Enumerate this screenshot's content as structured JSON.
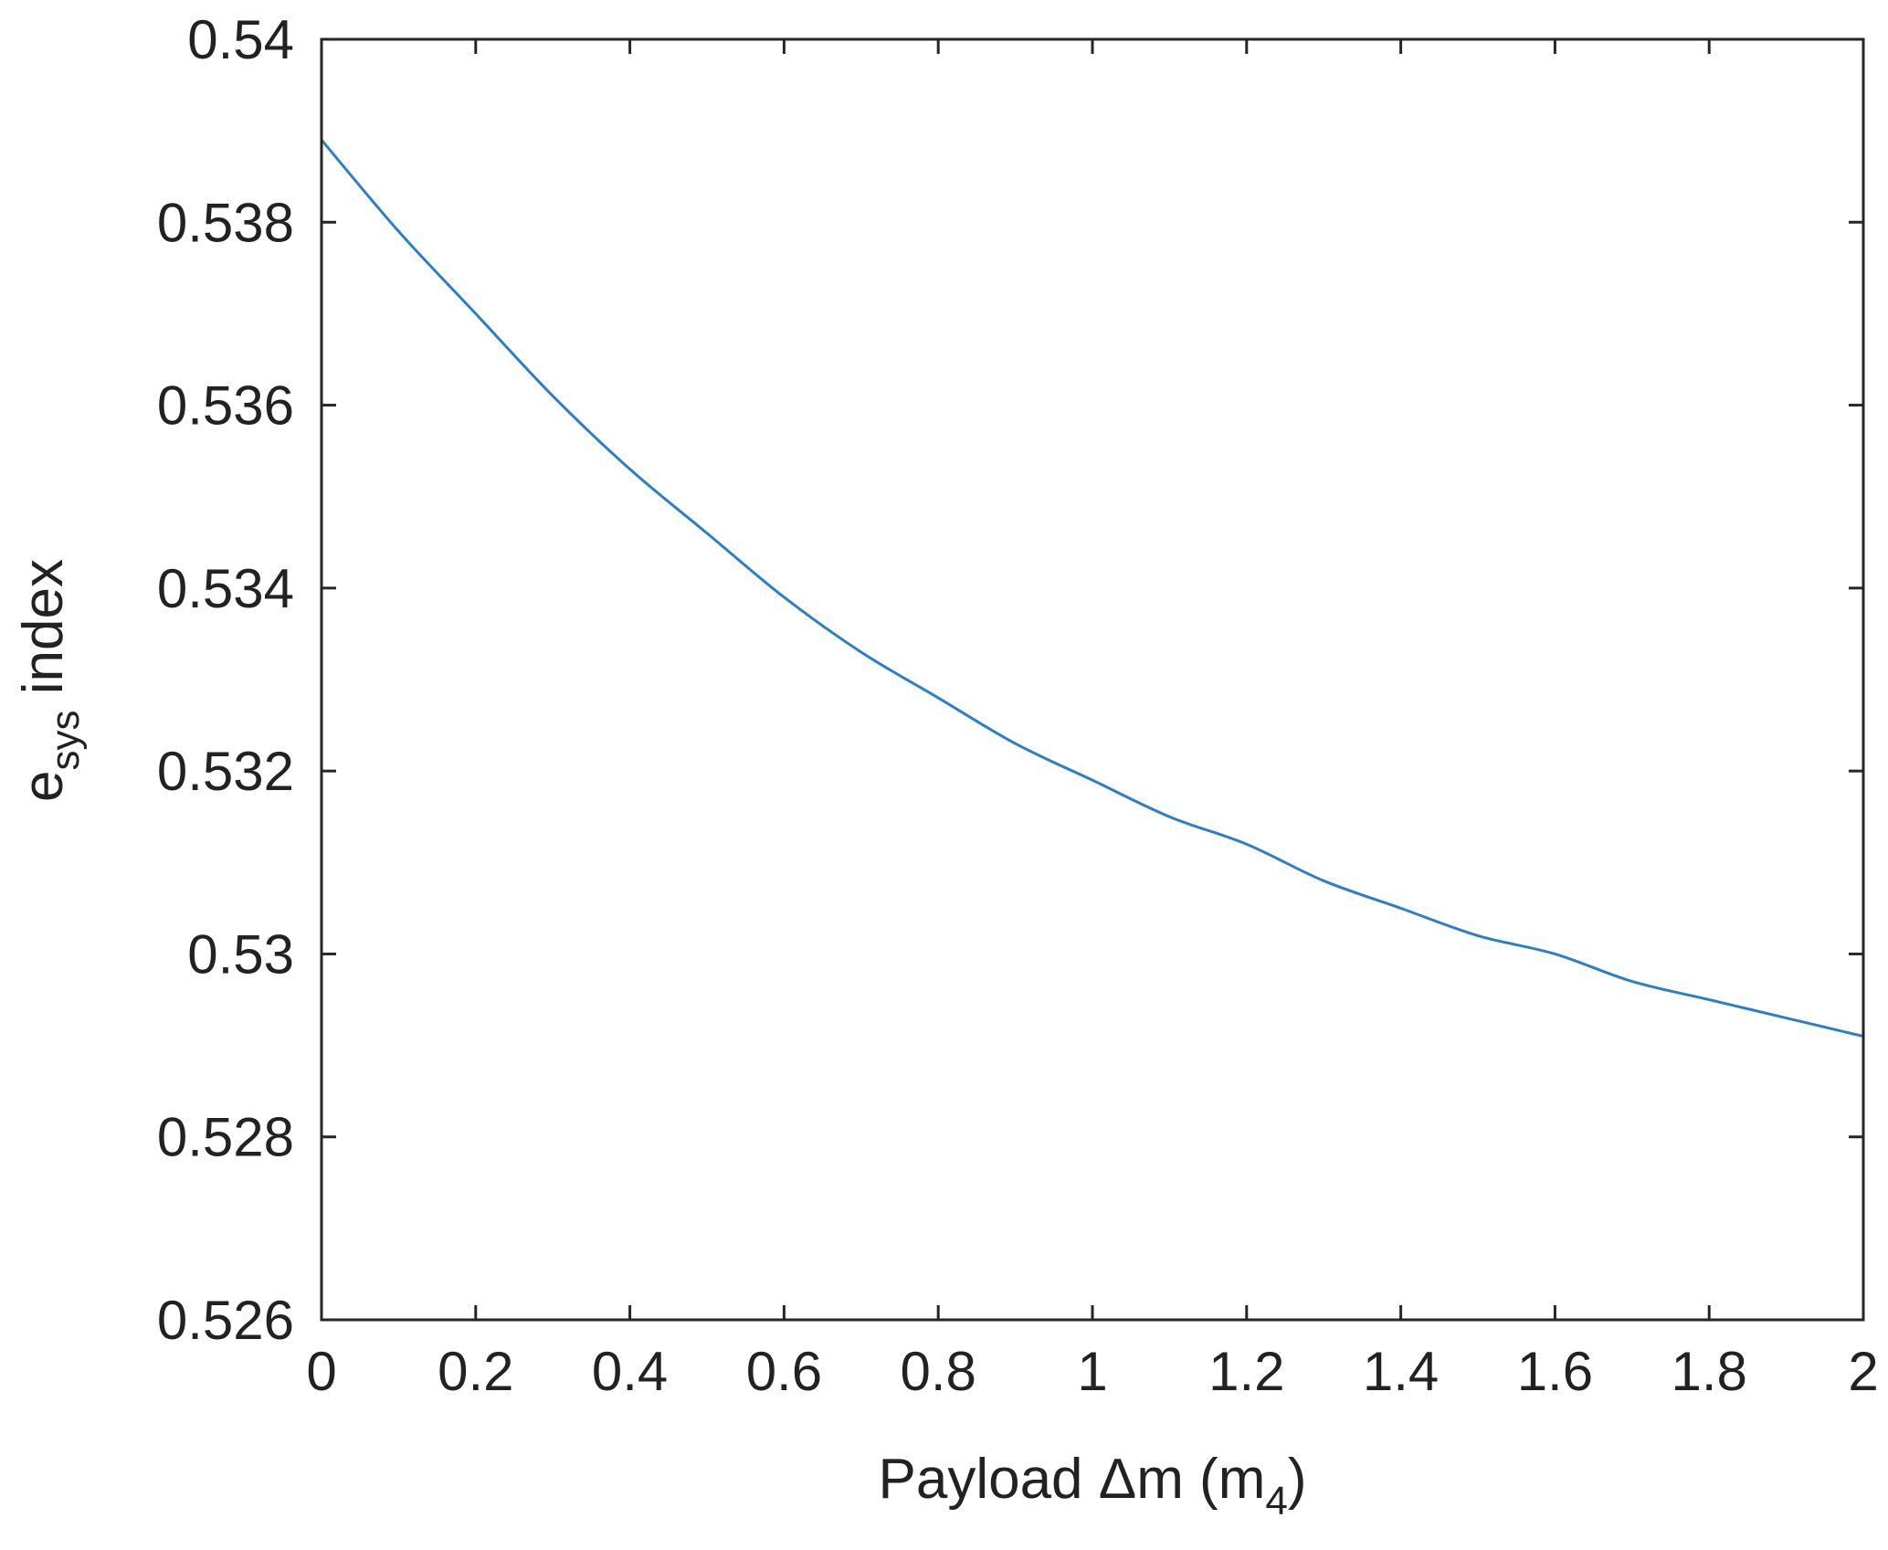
{
  "chart_data": {
    "type": "line",
    "title": "",
    "xlabel": {
      "prefix": "Payload ",
      "symbol": "Δ",
      "middle": "m (m",
      "subscript": "4",
      "suffix": ")"
    },
    "ylabel": {
      "prefix": "e",
      "subscript": "sys",
      "suffix": " index"
    },
    "xlim": [
      0,
      2
    ],
    "ylim": [
      0.526,
      0.54
    ],
    "xticks": [
      0,
      0.2,
      0.4,
      0.6,
      0.8,
      1,
      1.2,
      1.4,
      1.6,
      1.8,
      2
    ],
    "xtick_labels": [
      "0",
      "0.2",
      "0.4",
      "0.6",
      "0.8",
      "1",
      "1.2",
      "1.4",
      "1.6",
      "1.8",
      "2"
    ],
    "yticks": [
      0.526,
      0.528,
      0.53,
      0.532,
      0.534,
      0.536,
      0.538,
      0.54
    ],
    "ytick_labels": [
      "0.526",
      "0.528",
      "0.53",
      "0.532",
      "0.534",
      "0.536",
      "0.538",
      "0.54"
    ],
    "grid": false,
    "box": true,
    "series": [
      {
        "color": "#2a7fc8",
        "x": [
          0,
          0.1,
          0.2,
          0.3,
          0.4,
          0.5,
          0.6,
          0.7,
          0.8,
          0.9,
          1.0,
          1.1,
          1.2,
          1.3,
          1.4,
          1.5,
          1.6,
          1.7,
          1.8,
          1.9,
          2.0
        ],
        "y": [
          0.5389,
          0.5379,
          0.537,
          0.5361,
          0.5353,
          0.5346,
          0.5339,
          0.5333,
          0.5328,
          0.5323,
          0.5319,
          0.5315,
          0.5312,
          0.5308,
          0.5305,
          0.5302,
          0.53,
          0.5297,
          0.5295,
          0.5293,
          0.5291
        ]
      }
    ]
  }
}
